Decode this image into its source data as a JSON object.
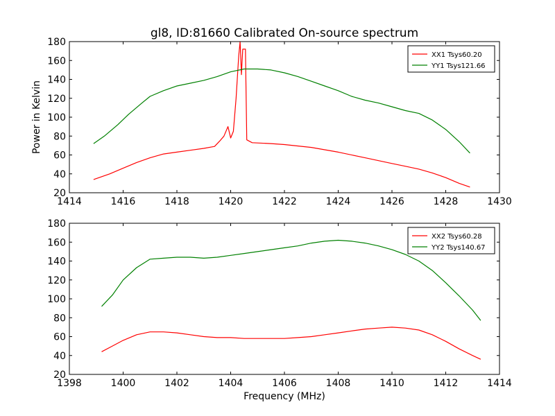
{
  "chart_data": [
    {
      "type": "line",
      "title": "gl8, ID:81660 Calibrated On-source spectrum",
      "xlabel": "",
      "ylabel": "Power in Kelvin",
      "xlim": [
        1414,
        1430
      ],
      "ylim": [
        20,
        180
      ],
      "xticks": [
        1414,
        1416,
        1418,
        1420,
        1422,
        1424,
        1426,
        1428,
        1430
      ],
      "yticks": [
        20,
        40,
        60,
        80,
        100,
        120,
        140,
        160,
        180
      ],
      "legend_position": "upper right",
      "series": [
        {
          "name": "XX1 Tsys60.20",
          "color": "#ff0000",
          "points": [
            [
              1414.9,
              34
            ],
            [
              1415.5,
              40
            ],
            [
              1416.0,
              46
            ],
            [
              1416.5,
              52
            ],
            [
              1417.0,
              57
            ],
            [
              1417.5,
              61
            ],
            [
              1418.0,
              63
            ],
            [
              1418.5,
              65
            ],
            [
              1419.0,
              67
            ],
            [
              1419.4,
              69
            ],
            [
              1419.6,
              75
            ],
            [
              1419.75,
              80
            ],
            [
              1419.9,
              90
            ],
            [
              1420.0,
              78
            ],
            [
              1420.1,
              85
            ],
            [
              1420.2,
              120
            ],
            [
              1420.3,
              165
            ],
            [
              1420.35,
              180
            ],
            [
              1420.4,
              145
            ],
            [
              1420.45,
              172
            ],
            [
              1420.55,
              172
            ],
            [
              1420.6,
              76
            ],
            [
              1420.8,
              73
            ],
            [
              1421.5,
              72
            ],
            [
              1422.0,
              71
            ],
            [
              1423.0,
              68
            ],
            [
              1424.0,
              63
            ],
            [
              1425.0,
              57
            ],
            [
              1426.0,
              51
            ],
            [
              1426.5,
              48
            ],
            [
              1427.0,
              45
            ],
            [
              1427.5,
              41
            ],
            [
              1428.0,
              36
            ],
            [
              1428.5,
              30
            ],
            [
              1428.9,
              26
            ]
          ]
        },
        {
          "name": "YY1 Tsys121.66",
          "color": "#008000",
          "points": [
            [
              1414.9,
              72
            ],
            [
              1415.3,
              80
            ],
            [
              1415.8,
              92
            ],
            [
              1416.2,
              103
            ],
            [
              1416.7,
              115
            ],
            [
              1417.0,
              122
            ],
            [
              1417.5,
              128
            ],
            [
              1418.0,
              133
            ],
            [
              1418.5,
              136
            ],
            [
              1419.0,
              139
            ],
            [
              1419.5,
              143
            ],
            [
              1420.0,
              148
            ],
            [
              1420.5,
              151
            ],
            [
              1421.0,
              151
            ],
            [
              1421.5,
              150
            ],
            [
              1422.0,
              147
            ],
            [
              1422.5,
              143
            ],
            [
              1423.0,
              138
            ],
            [
              1423.5,
              133
            ],
            [
              1424.0,
              128
            ],
            [
              1424.5,
              122
            ],
            [
              1425.0,
              118
            ],
            [
              1425.5,
              115
            ],
            [
              1426.0,
              111
            ],
            [
              1426.5,
              107
            ],
            [
              1427.0,
              104
            ],
            [
              1427.5,
              97
            ],
            [
              1428.0,
              87
            ],
            [
              1428.5,
              74
            ],
            [
              1428.9,
              62
            ]
          ]
        }
      ]
    },
    {
      "type": "line",
      "title": "",
      "xlabel": "Frequency (MHz)",
      "ylabel": "",
      "xlim": [
        1398,
        1414
      ],
      "ylim": [
        20,
        180
      ],
      "xticks": [
        1398,
        1400,
        1402,
        1404,
        1406,
        1408,
        1410,
        1412,
        1414
      ],
      "yticks": [
        20,
        40,
        60,
        80,
        100,
        120,
        140,
        160,
        180
      ],
      "legend_position": "upper right",
      "series": [
        {
          "name": "XX2 Tsys60.28",
          "color": "#ff0000",
          "points": [
            [
              1399.2,
              44
            ],
            [
              1399.6,
              50
            ],
            [
              1400.0,
              56
            ],
            [
              1400.5,
              62
            ],
            [
              1401.0,
              65
            ],
            [
              1401.5,
              65
            ],
            [
              1402.0,
              64
            ],
            [
              1402.5,
              62
            ],
            [
              1403.0,
              60
            ],
            [
              1403.5,
              59
            ],
            [
              1404.0,
              59
            ],
            [
              1404.5,
              58
            ],
            [
              1405.0,
              58
            ],
            [
              1405.5,
              58
            ],
            [
              1406.0,
              58
            ],
            [
              1406.5,
              59
            ],
            [
              1407.0,
              60
            ],
            [
              1407.5,
              62
            ],
            [
              1408.0,
              64
            ],
            [
              1408.5,
              66
            ],
            [
              1409.0,
              68
            ],
            [
              1409.5,
              69
            ],
            [
              1410.0,
              70
            ],
            [
              1410.5,
              69
            ],
            [
              1411.0,
              67
            ],
            [
              1411.5,
              62
            ],
            [
              1412.0,
              55
            ],
            [
              1412.5,
              47
            ],
            [
              1413.0,
              40
            ],
            [
              1413.3,
              36
            ]
          ]
        },
        {
          "name": "YY2 Tsys140.67",
          "color": "#008000",
          "points": [
            [
              1399.2,
              92
            ],
            [
              1399.6,
              104
            ],
            [
              1400.0,
              120
            ],
            [
              1400.5,
              133
            ],
            [
              1401.0,
              142
            ],
            [
              1401.5,
              143
            ],
            [
              1402.0,
              144
            ],
            [
              1402.5,
              144
            ],
            [
              1403.0,
              143
            ],
            [
              1403.5,
              144
            ],
            [
              1404.0,
              146
            ],
            [
              1404.5,
              148
            ],
            [
              1405.0,
              150
            ],
            [
              1405.5,
              152
            ],
            [
              1406.0,
              154
            ],
            [
              1406.5,
              156
            ],
            [
              1407.0,
              159
            ],
            [
              1407.5,
              161
            ],
            [
              1408.0,
              162
            ],
            [
              1408.5,
              161
            ],
            [
              1409.0,
              159
            ],
            [
              1409.5,
              156
            ],
            [
              1410.0,
              152
            ],
            [
              1410.5,
              147
            ],
            [
              1411.0,
              140
            ],
            [
              1411.5,
              130
            ],
            [
              1412.0,
              117
            ],
            [
              1412.5,
              103
            ],
            [
              1413.0,
              88
            ],
            [
              1413.3,
              77
            ]
          ]
        }
      ]
    }
  ]
}
